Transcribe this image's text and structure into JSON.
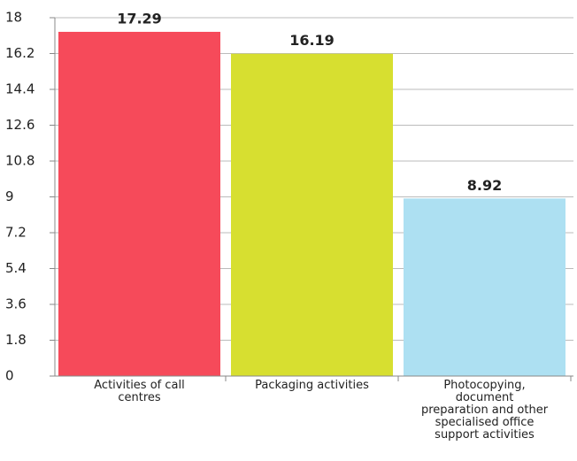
{
  "chart_data": {
    "type": "bar",
    "categories": [
      "Activities of call centres",
      "Packaging activities",
      "Photocopying, document preparation and other specialised office support activities"
    ],
    "values": [
      17.29,
      16.19,
      8.92
    ],
    "colors": [
      "#f64a5a",
      "#d7df30",
      "#ade0f2"
    ],
    "ylim": [
      0,
      18
    ],
    "yticks": [
      0,
      1.8,
      3.6,
      5.4,
      7.2,
      9,
      10.8,
      12.6,
      14.4,
      16.2,
      18
    ],
    "grid": true
  }
}
